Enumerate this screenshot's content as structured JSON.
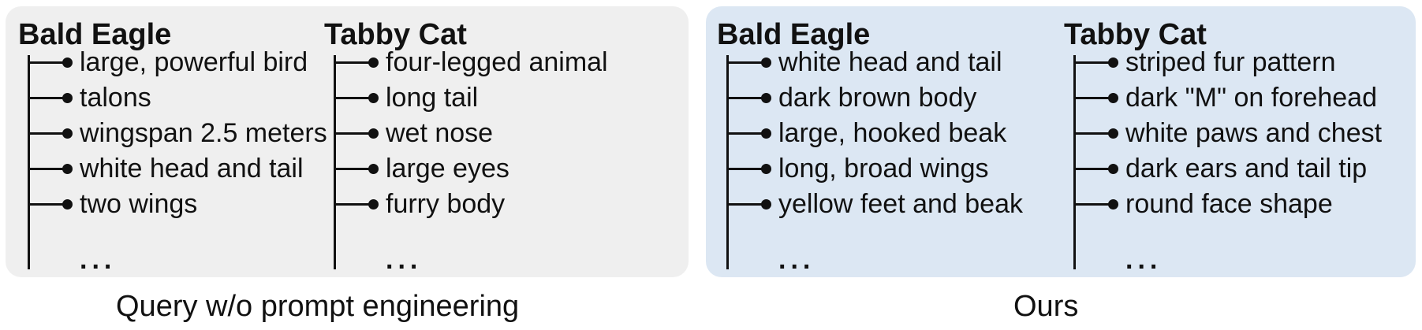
{
  "panels": [
    {
      "caption": "Query w/o prompt engineering",
      "columns": [
        {
          "title": "Bald Eagle",
          "items": [
            "large, powerful bird",
            "talons",
            "wingspan 2.5 meters",
            "white head and tail",
            "two wings"
          ],
          "ellipsis": "..."
        },
        {
          "title": "Tabby Cat",
          "items": [
            "four-legged animal",
            "long tail",
            "wet nose",
            "large eyes",
            "furry body"
          ],
          "ellipsis": "..."
        }
      ]
    },
    {
      "caption": "Ours",
      "columns": [
        {
          "title": "Bald Eagle",
          "items": [
            "white head and tail",
            "dark brown body",
            "large, hooked beak",
            "long, broad wings",
            "yellow feet and beak"
          ],
          "ellipsis": "..."
        },
        {
          "title": "Tabby Cat",
          "items": [
            "striped fur pattern",
            "dark \"M\" on forehead",
            "white paws and chest",
            "dark ears and tail tip",
            "round face shape"
          ],
          "ellipsis": "..."
        }
      ]
    }
  ],
  "colors": {
    "left_panel_bg": "#efefef",
    "right_panel_bg": "#dce7f3",
    "line": "#111111"
  }
}
